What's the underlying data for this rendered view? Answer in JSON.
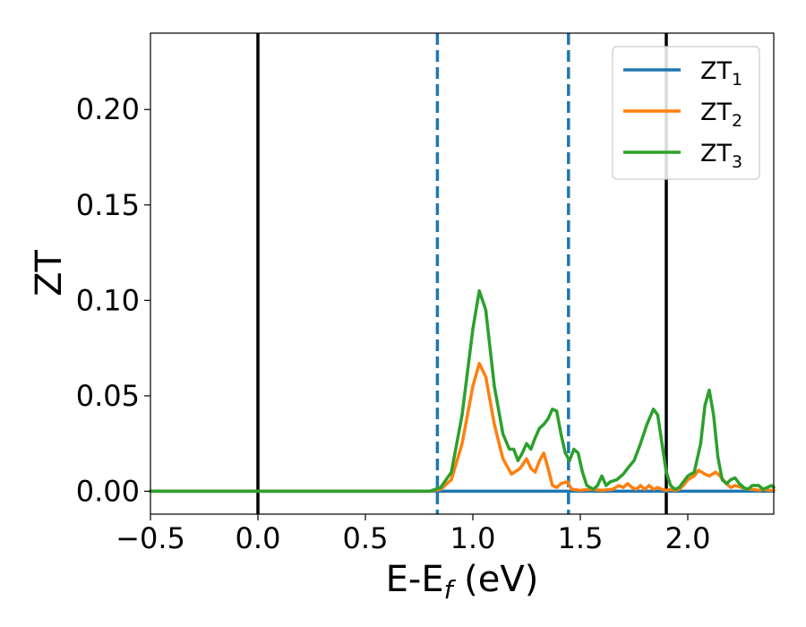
{
  "chart_data": {
    "type": "line",
    "title": "",
    "xlabel": "E-E",
    "xlabel_sub": "f",
    "xlabel_unit": " (eV)",
    "ylabel": "ZT",
    "xlim": [
      -0.5,
      2.4
    ],
    "ylim": [
      -0.012,
      0.24
    ],
    "xticks": [
      -0.5,
      0.0,
      0.5,
      1.0,
      1.5,
      2.0
    ],
    "xtick_labels": [
      "−0.5",
      "0.0",
      "0.5",
      "1.0",
      "1.5",
      "2.0"
    ],
    "yticks": [
      0.0,
      0.05,
      0.1,
      0.15,
      0.2
    ],
    "ytick_labels": [
      "0.00",
      "0.05",
      "0.10",
      "0.15",
      "0.20"
    ],
    "grid": false,
    "legend_position": "top-right",
    "vlines": [
      {
        "x": 0.0,
        "style": "solid",
        "color": "#000000"
      },
      {
        "x": 1.9,
        "style": "solid",
        "color": "#000000"
      },
      {
        "x": 0.835,
        "style": "dashed",
        "color": "#1f77b4"
      },
      {
        "x": 1.445,
        "style": "dashed",
        "color": "#1f77b4"
      }
    ],
    "series": [
      {
        "name": "ZT",
        "sub": "1",
        "color": "#1f77b4",
        "x": [
          -0.5,
          2.4
        ],
        "y": [
          0.0,
          0.0
        ]
      },
      {
        "name": "ZT",
        "sub": "2",
        "color": "#ff7f0e",
        "x": [
          -0.5,
          0.8,
          0.85,
          0.9,
          0.95,
          1.0,
          1.03,
          1.06,
          1.1,
          1.14,
          1.18,
          1.22,
          1.25,
          1.27,
          1.29,
          1.31,
          1.33,
          1.35,
          1.37,
          1.39,
          1.41,
          1.44,
          1.46,
          1.5,
          1.55,
          1.6,
          1.65,
          1.68,
          1.7,
          1.72,
          1.74,
          1.76,
          1.78,
          1.8,
          1.82,
          1.84,
          1.86,
          1.88,
          1.9,
          1.92,
          1.94,
          1.96,
          1.98,
          2.0,
          2.03,
          2.05,
          2.08,
          2.1,
          2.13,
          2.15,
          2.18,
          2.2,
          2.22,
          2.25,
          2.28,
          2.3,
          2.33,
          2.35,
          2.38,
          2.4
        ],
        "y": [
          0.0,
          0.0,
          0.001,
          0.006,
          0.025,
          0.055,
          0.067,
          0.06,
          0.035,
          0.017,
          0.009,
          0.012,
          0.017,
          0.012,
          0.01,
          0.016,
          0.02,
          0.012,
          0.003,
          0.002,
          0.004,
          0.005,
          0.001,
          0.0005,
          0.001,
          0.0005,
          0.001,
          0.003,
          0.002,
          0.004,
          0.002,
          0.001,
          0.003,
          0.001,
          0.003,
          0.001,
          0.002,
          0.001,
          0.0005,
          0.001,
          0.0005,
          0.001,
          0.003,
          0.006,
          0.008,
          0.011,
          0.009,
          0.008,
          0.01,
          0.008,
          0.004,
          0.002,
          0.003,
          0.002,
          0.001,
          0.001,
          0.0005,
          0.001,
          0.0005,
          0.0005
        ]
      },
      {
        "name": "ZT",
        "sub": "3",
        "color": "#2ca02c",
        "x": [
          -0.5,
          0.8,
          0.85,
          0.9,
          0.95,
          1.0,
          1.03,
          1.06,
          1.1,
          1.14,
          1.17,
          1.19,
          1.21,
          1.23,
          1.25,
          1.27,
          1.29,
          1.31,
          1.33,
          1.35,
          1.37,
          1.39,
          1.41,
          1.43,
          1.45,
          1.47,
          1.49,
          1.51,
          1.53,
          1.56,
          1.58,
          1.6,
          1.62,
          1.64,
          1.67,
          1.7,
          1.72,
          1.75,
          1.78,
          1.81,
          1.84,
          1.86,
          1.88,
          1.9,
          1.92,
          1.94,
          1.96,
          1.98,
          2.0,
          2.03,
          2.06,
          2.08,
          2.1,
          2.12,
          2.14,
          2.16,
          2.18,
          2.2,
          2.22,
          2.24,
          2.26,
          2.28,
          2.3,
          2.33,
          2.35,
          2.37,
          2.39,
          2.4
        ],
        "y": [
          0.0,
          0.0,
          0.002,
          0.01,
          0.04,
          0.085,
          0.105,
          0.095,
          0.055,
          0.03,
          0.022,
          0.022,
          0.016,
          0.02,
          0.025,
          0.022,
          0.028,
          0.033,
          0.035,
          0.038,
          0.043,
          0.042,
          0.03,
          0.02,
          0.016,
          0.022,
          0.02,
          0.01,
          0.003,
          0.001,
          0.003,
          0.008,
          0.003,
          0.005,
          0.006,
          0.009,
          0.012,
          0.016,
          0.025,
          0.035,
          0.043,
          0.04,
          0.025,
          0.01,
          0.003,
          0.001,
          0.002,
          0.005,
          0.008,
          0.01,
          0.025,
          0.045,
          0.053,
          0.04,
          0.018,
          0.006,
          0.004,
          0.006,
          0.007,
          0.004,
          0.002,
          0.001,
          0.003,
          0.003,
          0.001,
          0.002,
          0.003,
          0.002
        ]
      }
    ]
  }
}
